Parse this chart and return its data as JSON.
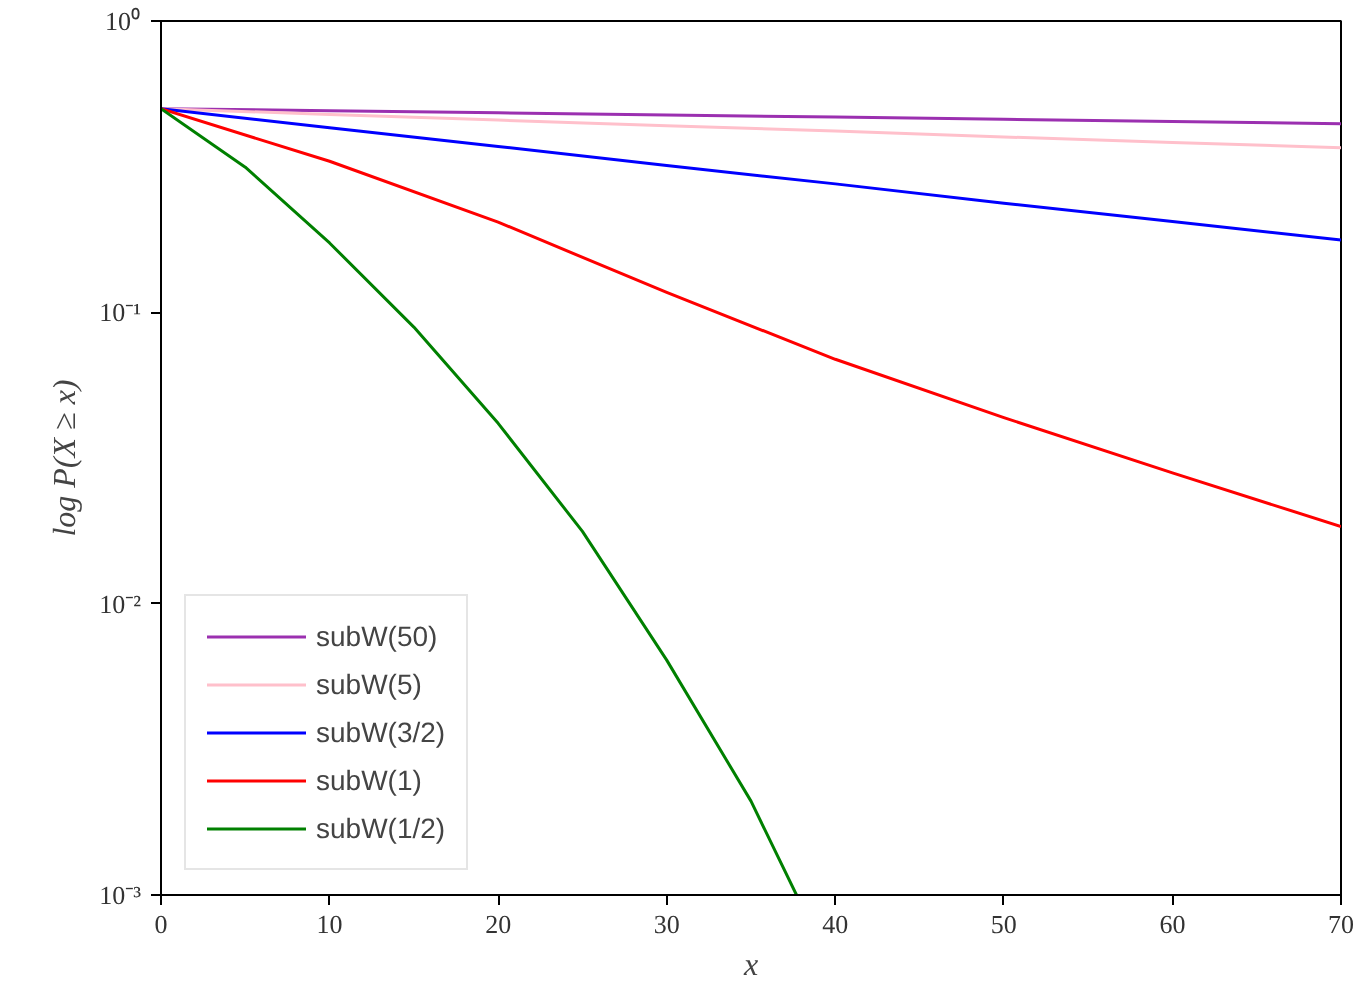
{
  "chart_data": {
    "type": "line",
    "xlabel": "x",
    "ylabel": "log P(X ≥ x)",
    "log": "y",
    "xlim": [
      0,
      70
    ],
    "ylim": [
      0.001,
      1
    ],
    "xticks": [
      0,
      10,
      20,
      30,
      40,
      50,
      60,
      70
    ],
    "yticks": [
      {
        "value": 0.001,
        "label": "10⁻³"
      },
      {
        "value": 0.01,
        "label": "10⁻²"
      },
      {
        "value": 0.1,
        "label": "10⁻¹"
      },
      {
        "value": 1,
        "label": "10⁰"
      }
    ],
    "grid": false,
    "legend": "bottom left",
    "line_style": "solid",
    "marker": "none",
    "series": [
      {
        "name": "subW(50)",
        "color": "#9b30b0",
        "x": [
          0,
          10,
          20,
          30,
          40,
          50,
          60,
          70
        ],
        "values": [
          0.5,
          0.492,
          0.484,
          0.476,
          0.468,
          0.46,
          0.452,
          0.444
        ]
      },
      {
        "name": "subW(5)",
        "color": "#ffc0cb",
        "x": [
          0,
          10,
          20,
          30,
          40,
          50,
          60,
          70
        ],
        "values": [
          0.5,
          0.478,
          0.457,
          0.437,
          0.419,
          0.4,
          0.383,
          0.367
        ]
      },
      {
        "name": "subW(3/2)",
        "color": "#0000ff",
        "x": [
          0,
          10,
          20,
          30,
          40,
          50,
          60,
          70
        ],
        "values": [
          0.5,
          0.43,
          0.371,
          0.319,
          0.276,
          0.237,
          0.205,
          0.177
        ]
      },
      {
        "name": "subW(1)",
        "color": "#ff0000",
        "x": [
          0,
          10,
          20,
          30,
          40,
          50,
          60,
          70
        ],
        "values": [
          0.5,
          0.33,
          0.204,
          0.117,
          0.069,
          0.0435,
          0.0281,
          0.0184
        ]
      },
      {
        "name": "subW(1/2)",
        "color": "#008000",
        "x": [
          0,
          5,
          10,
          15,
          20,
          25,
          30,
          35,
          37.7
        ],
        "values": [
          0.5,
          0.315,
          0.173,
          0.089,
          0.0416,
          0.0177,
          0.0064,
          0.0021,
          0.001
        ]
      }
    ]
  }
}
